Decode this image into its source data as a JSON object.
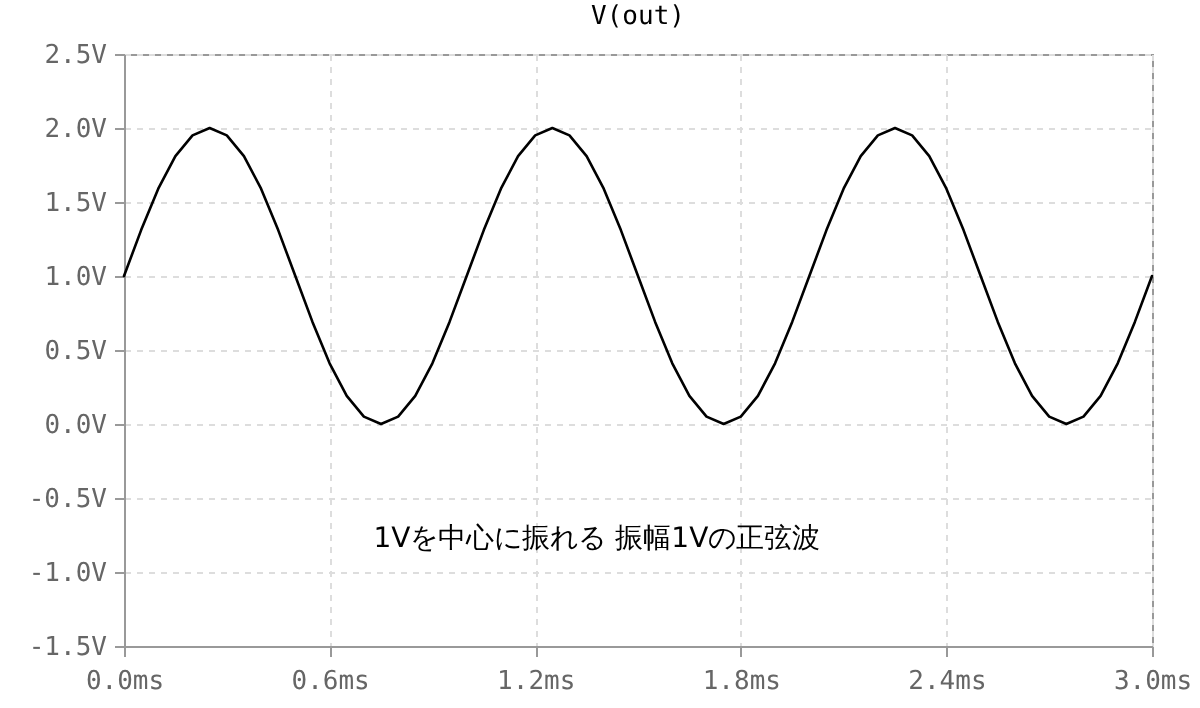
{
  "chart_data": {
    "type": "line",
    "title": "V(out)",
    "x": [
      0,
      0.05,
      0.1,
      0.15,
      0.2,
      0.25,
      0.3,
      0.35,
      0.4,
      0.45,
      0.5,
      0.55,
      0.6,
      0.65,
      0.7,
      0.75,
      0.8,
      0.85,
      0.9,
      0.95,
      1,
      1.05,
      1.1,
      1.15,
      1.2,
      1.25,
      1.3,
      1.35,
      1.4,
      1.45,
      1.5,
      1.55,
      1.6,
      1.65,
      1.7,
      1.75,
      1.8,
      1.85,
      1.9,
      1.95,
      2,
      2.05,
      2.1,
      2.15,
      2.2,
      2.25,
      2.3,
      2.35,
      2.4,
      2.45,
      2.5,
      2.55,
      2.6,
      2.65,
      2.7,
      2.75,
      2.8,
      2.85,
      2.9,
      2.95,
      3
    ],
    "series": [
      {
        "color": "#000000",
        "values": [
          1.0,
          1.31,
          1.59,
          1.81,
          1.95,
          2.0,
          1.95,
          1.81,
          1.59,
          1.31,
          1.0,
          0.69,
          0.41,
          0.19,
          0.05,
          0.0,
          0.05,
          0.19,
          0.41,
          0.69,
          1.0,
          1.31,
          1.59,
          1.81,
          1.95,
          2.0,
          1.95,
          1.81,
          1.59,
          1.31,
          1.0,
          0.69,
          0.41,
          0.19,
          0.05,
          0.0,
          0.05,
          0.19,
          0.41,
          0.69,
          1.0,
          1.31,
          1.59,
          1.81,
          1.95,
          2.0,
          1.95,
          1.81,
          1.59,
          1.31,
          1.0,
          0.69,
          0.41,
          0.19,
          0.05,
          0.0,
          0.05,
          0.19,
          0.41,
          0.69,
          1.0
        ]
      }
    ],
    "xlim": [
      0,
      3
    ],
    "xticks": [
      {
        "value": 0,
        "label": "0.0ms"
      },
      {
        "value": 0.6,
        "label": "0.6ms"
      },
      {
        "value": 1.2,
        "label": "1.2ms"
      },
      {
        "value": 1.8,
        "label": "1.8ms"
      },
      {
        "value": 2.4,
        "label": "2.4ms"
      },
      {
        "value": 3,
        "label": "3.0ms"
      }
    ],
    "ylim": [
      -1.5,
      2.5
    ],
    "yticks": [
      {
        "value": -1.5,
        "label": "-1.5V"
      },
      {
        "value": -1,
        "label": "-1.0V"
      },
      {
        "value": -0.5,
        "label": "-0.5V"
      },
      {
        "value": 0,
        "label": "0.0V"
      },
      {
        "value": 0.5,
        "label": "0.5V"
      },
      {
        "value": 1,
        "label": "1.0V"
      },
      {
        "value": 1.5,
        "label": "1.5V"
      },
      {
        "value": 2,
        "label": "2.0V"
      },
      {
        "value": 2.5,
        "label": "2.5V"
      }
    ],
    "annotations": [
      "1Vを中心に振れる 振幅1Vの正弦波"
    ],
    "grid": true,
    "marker": "none",
    "line_style": "solid"
  }
}
